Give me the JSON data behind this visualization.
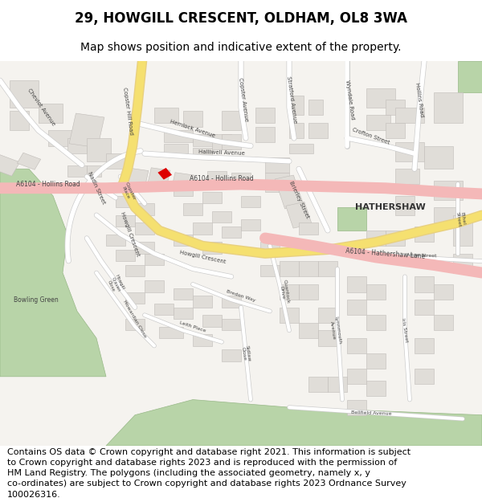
{
  "title": "29, HOWGILL CRESCENT, OLDHAM, OL8 3WA",
  "subtitle": "Map shows position and indicative extent of the property.",
  "footer_line1": "Contains OS data © Crown copyright and database right 2021. This information is subject",
  "footer_line2": "to Crown copyright and database rights 2023 and is reproduced with the permission of",
  "footer_line3": "HM Land Registry. The polygons (including the associated geometry, namely x, y",
  "footer_line4": "co-ordinates) are subject to Crown copyright and database rights 2023 Ordnance Survey",
  "footer_line5": "100026316.",
  "map_bg": "#f5f3ef",
  "road_white": "#ffffff",
  "road_pink_outer": "#f4b8b8",
  "road_pink_inner": "#f4b8b8",
  "road_yellow_outer": "#e8d080",
  "road_yellow_inner": "#f5e070",
  "green1": "#b8d4a8",
  "green2": "#b8d4a8",
  "building_fill": "#e0ddd8",
  "building_edge": "#c8c5c0",
  "highlight_red": "#dd0000",
  "text_color": "#444444",
  "title_fontsize": 12,
  "subtitle_fontsize": 10,
  "footer_fontsize": 8
}
